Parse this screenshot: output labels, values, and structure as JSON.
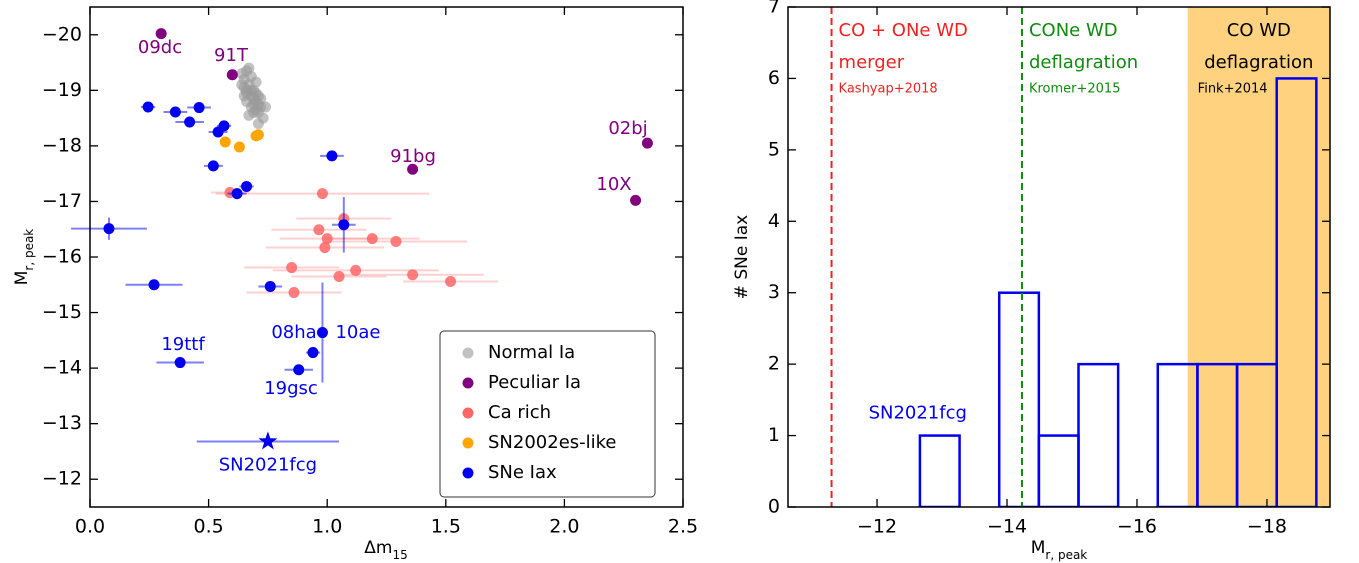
{
  "chart_data": [
    {
      "type": "scatter",
      "x_label": "Δm",
      "x_label_sub": "15",
      "y_label": "M",
      "y_label_sub": "r, peak",
      "xlim": [
        0,
        2.5
      ],
      "ylim": [
        -11.5,
        -20.5
      ],
      "xticks": [
        {
          "value": 0,
          "label": "0.0"
        },
        0.5,
        {
          "value": 1,
          "label": "1.0"
        },
        1.5,
        {
          "value": 2,
          "label": "2.0"
        },
        2.5
      ],
      "yticks": [
        {
          "value": -12,
          "label": "−12"
        },
        {
          "value": -13,
          "label": "−13"
        },
        {
          "value": -14,
          "label": "−14"
        },
        {
          "value": -15,
          "label": "−15"
        },
        {
          "value": -16,
          "label": "−16"
        },
        {
          "value": -17,
          "label": "−17"
        },
        {
          "value": -18,
          "label": "−18"
        },
        {
          "value": -19,
          "label": "−19"
        },
        {
          "value": -20,
          "label": "−20"
        }
      ],
      "legend": "lower right",
      "series": [
        {
          "name": "Normal Ia",
          "color": "#999999",
          "x": [
            0.64,
            0.65,
            0.66,
            0.67,
            0.68,
            0.69,
            0.7,
            0.71,
            0.72,
            0.65,
            0.66,
            0.67,
            0.68,
            0.69,
            0.7,
            0.71,
            0.64,
            0.66,
            0.68,
            0.7,
            0.72,
            0.67,
            0.69,
            0.71,
            0.65,
            0.68,
            0.7,
            0.73,
            0.66,
            0.69,
            0.71,
            0.74
          ],
          "y": [
            -19.3,
            -19.2,
            -19.35,
            -19.1,
            -19.25,
            -19.0,
            -18.95,
            -18.9,
            -18.85,
            -19.05,
            -18.8,
            -19.4,
            -18.7,
            -18.75,
            -19.15,
            -18.6,
            -19.1,
            -18.95,
            -18.9,
            -18.65,
            -18.7,
            -18.55,
            -18.85,
            -18.75,
            -18.9,
            -19.0,
            -18.8,
            -18.5,
            -19.0,
            -18.6,
            -18.4,
            -18.7
          ]
        },
        {
          "name": "Peculiar Ia",
          "color": "#800080",
          "x": [
            0.3,
            0.6,
            1.36,
            2.35,
            2.3
          ],
          "y": [
            -20.02,
            -19.28,
            -17.58,
            -18.05,
            -17.02
          ],
          "labels": [
            "09dc",
            "91T",
            "91bg",
            "02bj",
            "10X"
          ]
        },
        {
          "name": "Ca rich",
          "color": "#ff6666",
          "x": [
            0.59,
            0.98,
            1.07,
            0.965,
            1.0,
            0.99,
            1.19,
            1.29,
            0.85,
            1.12,
            1.05,
            1.36,
            1.52,
            0.86
          ],
          "y": [
            -17.16,
            -17.14,
            -16.69,
            -16.49,
            -16.33,
            -16.17,
            -16.33,
            -16.28,
            -15.81,
            -15.76,
            -15.65,
            -15.68,
            -15.56,
            -15.36
          ],
          "xerr": [
            0.08,
            0.45,
            0.2,
            0.2,
            0.2,
            0.25,
            0.2,
            0.3,
            0.2,
            0.35,
            0.2,
            0.3,
            0.2,
            0.2
          ]
        },
        {
          "name": "SN2002es-like",
          "color": "#ffa500",
          "x": [
            0.57,
            0.63,
            0.7,
            0.71
          ],
          "y": [
            -18.07,
            -17.98,
            -18.18,
            -18.2
          ]
        },
        {
          "name": "SNe Iax",
          "color": "#0000ee",
          "x": [
            0.245,
            0.36,
            0.42,
            0.46,
            0.54,
            0.565,
            0.52,
            0.66,
            0.62,
            1.02,
            0.08,
            1.07,
            0.27,
            0.76,
            0.98,
            0.94,
            0.88,
            0.38
          ],
          "y": [
            -18.7,
            -18.61,
            -18.43,
            -18.69,
            -18.25,
            -18.36,
            -17.64,
            -17.27,
            -17.14,
            -17.82,
            -16.51,
            -16.58,
            -15.5,
            -15.47,
            -14.64,
            -14.28,
            -13.97,
            -14.1
          ],
          "xerr": [
            0.03,
            0.05,
            0.06,
            0.05,
            0.04,
            0.03,
            0.04,
            0.03,
            0.04,
            0.05,
            0.16,
            0.05,
            0.12,
            0.05,
            0.02,
            0.03,
            0.06,
            0.1
          ],
          "yerr": [
            0.08,
            0.05,
            0.1,
            0.05,
            0.08,
            0.06,
            0.08,
            0.06,
            0.1,
            0.05,
            0.2,
            0.5,
            0.08,
            0.06,
            0.9,
            0.1,
            0.08,
            0.05
          ]
        }
      ],
      "highlight": {
        "label": "SN2021fcg",
        "x": 0.75,
        "y": -12.68,
        "xerr": 0.3,
        "color": "#0000ee"
      },
      "annotations": [
        "19ttf",
        "08ha",
        "10ae",
        "19gsc"
      ]
    },
    {
      "type": "histogram",
      "x_label": "M",
      "x_label_sub": "r, peak",
      "y_label": "# SNe Iax",
      "xlim": [
        -10.63,
        -18.97
      ],
      "ylim": [
        0,
        7
      ],
      "xticks": [
        {
          "value": -12,
          "label": "−12"
        },
        {
          "value": -14,
          "label": "−14"
        },
        {
          "value": -16,
          "label": "−16"
        },
        {
          "value": -18,
          "label": "−18"
        }
      ],
      "yticks": [
        0,
        1,
        2,
        3,
        4,
        5,
        6,
        7
      ],
      "bins": [
        -12.66,
        -13.27,
        -13.88,
        -14.49,
        -15.1,
        -15.71,
        -16.32,
        -16.93,
        -17.54,
        -18.15,
        -18.76
      ],
      "counts": [
        1,
        0,
        3,
        1,
        2,
        0,
        2,
        2,
        2,
        6
      ],
      "color": "#0000ee",
      "annotation": "SN2021fcg",
      "models": [
        {
          "lines": [
            "CO + ONe WD",
            "merger"
          ],
          "ref": "Kashyap+2018",
          "x": -11.3,
          "color": "#ee2222"
        },
        {
          "lines": [
            "CONe WD",
            "deflagration"
          ],
          "ref": "Kromer+2015",
          "x": -14.23,
          "color": "#108a10"
        },
        {
          "lines": [
            "CO WD",
            "deflagration"
          ],
          "ref": "Fink+2014",
          "range": [
            -16.78,
            -19.0
          ],
          "color": "#ffd27f"
        }
      ]
    }
  ]
}
